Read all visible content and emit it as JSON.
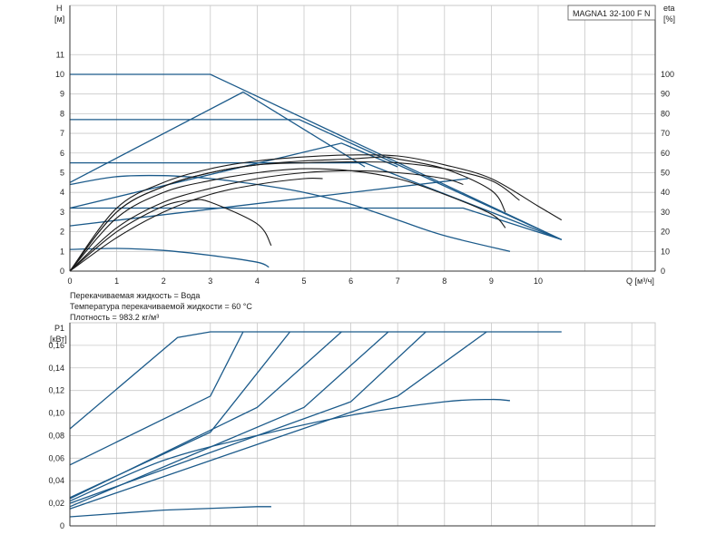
{
  "colors": {
    "blue": "#1b5a8a",
    "black": "#1a1a1a",
    "grid": "#c8c8c8",
    "axis": "#333333"
  },
  "top": {
    "model": "MAGNA1 32-100 F N",
    "ylabel_left": "H",
    "ylabel_left_unit": "[м]",
    "ylabel_right": "eta",
    "ylabel_right_unit": "[%]",
    "xlabel": "Q [м³/ч]"
  },
  "notes": {
    "liquid": "Перекачиваемая жидкость = Вода",
    "temp": "Температура перекачиваемой жидкости = 60 °C",
    "density": "Плотность = 983.2 кг/м³"
  },
  "bottom": {
    "ylabel": "P1",
    "ylabel_unit": "[кВт]"
  },
  "chart_data": [
    {
      "type": "line",
      "title": "MAGNA1 32-100 F N",
      "xlabel": "Q [м³/ч]",
      "ylabel": "H [м]",
      "y2label": "eta [%]",
      "xlim": [
        0,
        12.5
      ],
      "ylim": [
        0,
        13.5
      ],
      "y2lim": [
        0,
        135
      ],
      "xticks": [
        "0",
        "1",
        "2",
        "3",
        "4",
        "5",
        "6",
        "7",
        "8",
        "9",
        "10"
      ],
      "yticks": [
        "0",
        "1",
        "2",
        "3",
        "4",
        "5",
        "6",
        "7",
        "8",
        "9",
        "10",
        "11"
      ],
      "y2ticks": [
        "0",
        "10",
        "20",
        "30",
        "40",
        "50",
        "60",
        "70",
        "80",
        "90",
        "100"
      ],
      "grid": true,
      "series": [
        {
          "kind": "pump-curve",
          "color": "blue",
          "points": [
            [
              0,
              10
            ],
            [
              3,
              10
            ],
            [
              10.5,
              1.6
            ]
          ]
        },
        {
          "kind": "pump-curve",
          "color": "blue",
          "points": [
            [
              0,
              7.7
            ],
            [
              4.9,
              7.7
            ],
            [
              10.5,
              1.6
            ]
          ]
        },
        {
          "kind": "pump-curve",
          "color": "blue",
          "points": [
            [
              0,
              5.5
            ],
            [
              6.3,
              5.5
            ],
            [
              10.5,
              1.6
            ]
          ]
        },
        {
          "kind": "pump-curve",
          "color": "blue",
          "points": [
            [
              0,
              3.2
            ],
            [
              8.4,
              3.2
            ],
            [
              10.5,
              1.6
            ]
          ]
        },
        {
          "kind": "pump-curve",
          "color": "blue",
          "points": [
            [
              0,
              4.5
            ],
            [
              3.7,
              9.1
            ],
            [
              6.3,
              5.3
            ]
          ]
        },
        {
          "kind": "pump-curve",
          "color": "blue",
          "points": [
            [
              0,
              3.2
            ],
            [
              5.8,
              6.5
            ],
            [
              7,
              5.3
            ]
          ]
        },
        {
          "kind": "pump-curve",
          "color": "blue",
          "points": [
            [
              0,
              2.3
            ],
            [
              8.5,
              4.7
            ]
          ]
        },
        {
          "kind": "pump-curve",
          "color": "blue",
          "points": [
            [
              0,
              4.4
            ],
            [
              1,
              4.8
            ],
            [
              2,
              4.85
            ],
            [
              3,
              4.7
            ],
            [
              4,
              4.4
            ],
            [
              5,
              4
            ],
            [
              6,
              3.4
            ],
            [
              7,
              2.6
            ],
            [
              8,
              1.8
            ],
            [
              9.4,
              1
            ]
          ]
        },
        {
          "kind": "pump-curve",
          "color": "blue",
          "points": [
            [
              0,
              1.1
            ],
            [
              1,
              1.15
            ],
            [
              2,
              1.05
            ],
            [
              3,
              0.8
            ],
            [
              4,
              0.45
            ],
            [
              4.25,
              0.2
            ]
          ]
        },
        {
          "kind": "efficiency",
          "color": "black",
          "points": [
            [
              0,
              0
            ],
            [
              1,
              32
            ],
            [
              2,
              45
            ],
            [
              3,
              52
            ],
            [
              4,
              56
            ],
            [
              5,
              58
            ],
            [
              6,
              59
            ],
            [
              7,
              58.5
            ],
            [
              8,
              54
            ],
            [
              9,
              47
            ],
            [
              10,
              33
            ],
            [
              10.5,
              26
            ]
          ]
        },
        {
          "kind": "efficiency",
          "color": "black",
          "points": [
            [
              0,
              0
            ],
            [
              1,
              30
            ],
            [
              2,
              43
            ],
            [
              3,
              50
            ],
            [
              4,
              54
            ],
            [
              5,
              56
            ],
            [
              6,
              57
            ],
            [
              6.7,
              58
            ],
            [
              7,
              57
            ],
            [
              8,
              52
            ],
            [
              9,
              41
            ],
            [
              9.3,
              30
            ]
          ]
        },
        {
          "kind": "efficiency",
          "color": "black",
          "points": [
            [
              0,
              0
            ],
            [
              1,
              30
            ],
            [
              2,
              43
            ],
            [
              3,
              50
            ],
            [
              4,
              54
            ],
            [
              5,
              55
            ],
            [
              6,
              55.5
            ],
            [
              7,
              55
            ],
            [
              8,
              52
            ],
            [
              9,
              46
            ],
            [
              9.6,
              36
            ]
          ]
        },
        {
          "kind": "efficiency",
          "color": "black",
          "points": [
            [
              0,
              0
            ],
            [
              1,
              27
            ],
            [
              2,
              40
            ],
            [
              3,
              46
            ],
            [
              4,
              50
            ],
            [
              5,
              52
            ],
            [
              6,
              51
            ],
            [
              7,
              47
            ],
            [
              8,
              39
            ],
            [
              9,
              29
            ],
            [
              9.3,
              22
            ]
          ]
        },
        {
          "kind": "efficiency",
          "color": "black",
          "points": [
            [
              0,
              0
            ],
            [
              1,
              22
            ],
            [
              2,
              35
            ],
            [
              3,
              42
            ],
            [
              4,
              47
            ],
            [
              5,
              50
            ],
            [
              6,
              51
            ],
            [
              7,
              50
            ],
            [
              8,
              47
            ],
            [
              8.4,
              44
            ]
          ]
        },
        {
          "kind": "efficiency",
          "color": "black",
          "points": [
            [
              0,
              0
            ],
            [
              1,
              17
            ],
            [
              2,
              30
            ],
            [
              3,
              39
            ],
            [
              4,
              44
            ],
            [
              5,
              47
            ],
            [
              5.4,
              47
            ]
          ]
        },
        {
          "kind": "efficiency",
          "color": "black",
          "points": [
            [
              0,
              0
            ],
            [
              1,
              20
            ],
            [
              2,
              33
            ],
            [
              2.6,
              36
            ],
            [
              3,
              35
            ],
            [
              4,
              24
            ],
            [
              4.3,
              13
            ]
          ]
        }
      ]
    },
    {
      "type": "line",
      "xlabel": "",
      "ylabel": "P1 [кВт]",
      "xlim": [
        0,
        12.5
      ],
      "ylim": [
        0,
        0.18
      ],
      "yticks": [
        "0",
        "0,02",
        "0,04",
        "0,06",
        "0,08",
        "0,10",
        "0,12",
        "0,14",
        "0,16"
      ],
      "grid": true,
      "series": [
        {
          "color": "blue",
          "points": [
            [
              0,
              0.086
            ],
            [
              2.3,
              0.167
            ],
            [
              3,
              0.172
            ],
            [
              10.5,
              0.172
            ]
          ]
        },
        {
          "color": "blue",
          "points": [
            [
              0,
              0.054
            ],
            [
              3,
              0.115
            ],
            [
              3.7,
              0.172
            ]
          ]
        },
        {
          "color": "blue",
          "points": [
            [
              0,
              0.025
            ],
            [
              3,
              0.083
            ],
            [
              4.7,
              0.172
            ]
          ]
        },
        {
          "color": "blue",
          "points": [
            [
              0,
              0.024
            ],
            [
              4,
              0.105
            ],
            [
              5.8,
              0.172
            ]
          ]
        },
        {
          "color": "blue",
          "points": [
            [
              0,
              0.017
            ],
            [
              5,
              0.105
            ],
            [
              6.8,
              0.172
            ]
          ]
        },
        {
          "color": "blue",
          "points": [
            [
              0,
              0.02
            ],
            [
              6,
              0.11
            ],
            [
              7.6,
              0.172
            ]
          ]
        },
        {
          "color": "blue",
          "points": [
            [
              0,
              0.015
            ],
            [
              7,
              0.115
            ],
            [
              8.9,
              0.172
            ]
          ]
        },
        {
          "color": "blue",
          "points": [
            [
              0,
              0.022
            ],
            [
              2,
              0.058
            ],
            [
              4,
              0.08
            ],
            [
              6,
              0.098
            ],
            [
              8,
              0.11
            ],
            [
              9,
              0.112
            ],
            [
              9.4,
              0.111
            ]
          ]
        },
        {
          "color": "blue",
          "points": [
            [
              0,
              0.008
            ],
            [
              2,
              0.014
            ],
            [
              4,
              0.017
            ],
            [
              4.3,
              0.017
            ]
          ]
        }
      ]
    }
  ]
}
